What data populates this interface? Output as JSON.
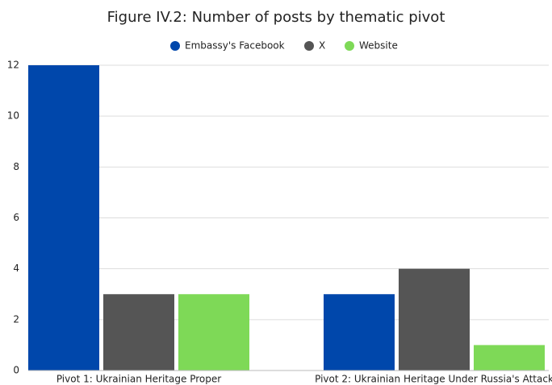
{
  "chart_data": {
    "type": "bar",
    "title": "Figure IV.2: Number of posts by thematic pivot",
    "categories": [
      "Pivot 1: Ukrainian Heritage Proper",
      "Pivot 2: Ukrainian Heritage Under Russia's Attack"
    ],
    "series": [
      {
        "name": "Embassy's Facebook",
        "color": "#0047ab",
        "values": [
          12,
          3
        ]
      },
      {
        "name": "X",
        "color": "#555555",
        "values": [
          3,
          4
        ]
      },
      {
        "name": "Website",
        "color": "#7ed957",
        "values": [
          3,
          1
        ]
      }
    ],
    "ylim": [
      0,
      12
    ],
    "yticks": [
      0,
      2,
      4,
      6,
      8,
      10,
      12
    ],
    "grid": true,
    "legend": "top"
  }
}
